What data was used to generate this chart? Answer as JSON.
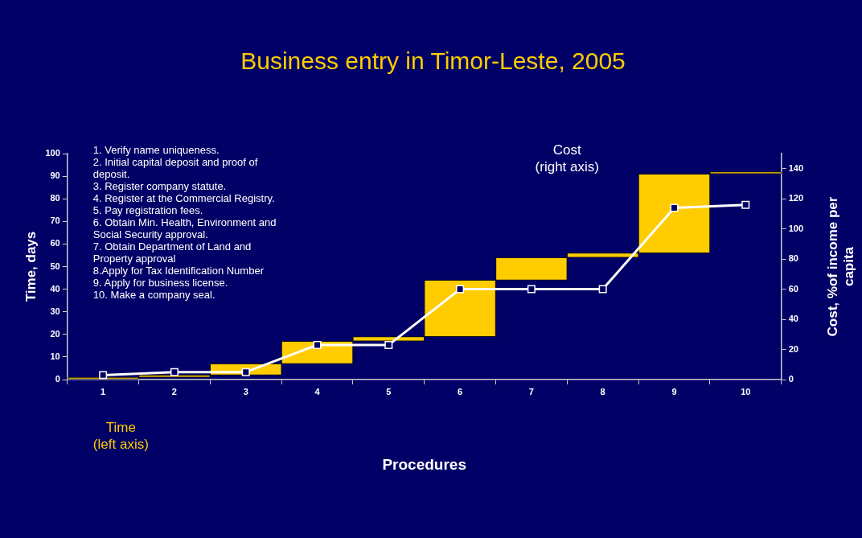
{
  "chart_data": {
    "type": "bar",
    "title": "Business entry in Timor-Leste, 2005",
    "xlabel": "Procedures",
    "ylabel": "Time, days",
    "y2label": "Cost, %of income per capita",
    "categories": [
      "1",
      "2",
      "3",
      "4",
      "5",
      "6",
      "7",
      "8",
      "9",
      "10"
    ],
    "series": [
      {
        "color": "#ffcc00",
        "base": [
          0,
          1,
          2,
          7,
          17,
          19,
          44,
          54,
          56,
          91
        ],
        "values": [
          1,
          1,
          5,
          10,
          2,
          25,
          10,
          2,
          35,
          1
        ]
      },
      {
        "type": "line",
        "axis": "y2",
        "color": "#ffffff",
        "values": [
          3,
          5,
          5,
          23,
          23,
          60,
          60,
          60,
          114,
          116
        ]
      }
    ],
    "ylim": [
      0,
      100
    ],
    "yticks": [
      0,
      10,
      20,
      30,
      40,
      50,
      60,
      70,
      80,
      90,
      100
    ],
    "y2lim": [
      0,
      150
    ],
    "y2ticks": [
      0,
      20,
      40,
      60,
      80,
      100,
      120,
      140
    ],
    "marker": "square",
    "grid": false,
    "legend": false,
    "annotations": [
      "1. Verify name uniqueness.\n2. Initial capital deposit and proof of\ndeposit.\n3. Register company statute.\n4. Register at the Commercial Registry.\n5. Pay registration fees.\n6. Obtain Min. Health, Environment and\nSocial Security approval.\n7. Obtain Department of Land and\nProperty approval\n8.Apply for Tax Identification Number\n9. Apply for business license.\n10. Make a company seal.",
      "Cost\n(right axis)",
      "Time\n(left axis)"
    ]
  }
}
